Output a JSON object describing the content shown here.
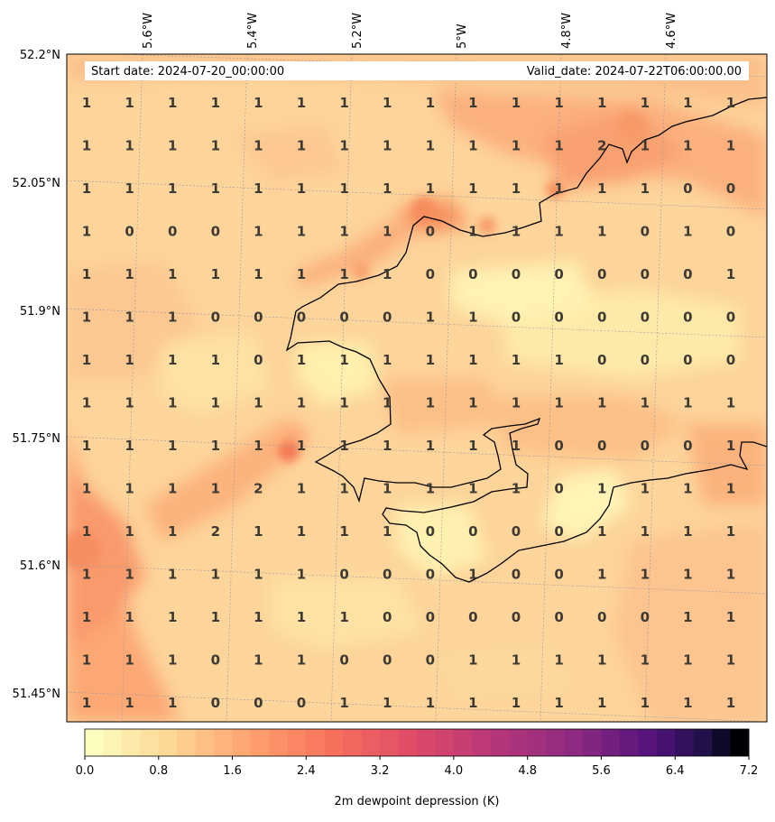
{
  "header": {
    "start_date": "Start date: 2024-07-20_00:00:00",
    "valid_date": "Valid_date: 2024-07-22T06:00:00.00"
  },
  "axes": {
    "lat_labels": [
      "52.2°N",
      "52.05°N",
      "51.9°N",
      "51.75°N",
      "51.6°N",
      "51.45°N"
    ],
    "lon_labels": [
      "5.6°W",
      "5.4°W",
      "5.2°W",
      "5°W",
      "4.8°W",
      "4.6°W"
    ]
  },
  "colorbar": {
    "label": "2m dewpoint depression (K)",
    "min": 0.0,
    "max": 7.2,
    "ticks": [
      "0.0",
      "0.8",
      "1.6",
      "2.4",
      "3.2",
      "4.0",
      "4.8",
      "5.6",
      "6.4",
      "7.2"
    ],
    "colormap": "magma-reversed"
  },
  "grid_values": [
    [
      1,
      1,
      1,
      1,
      1,
      1,
      1,
      1,
      1,
      1,
      1,
      1,
      1,
      1,
      1,
      1
    ],
    [
      1,
      1,
      1,
      1,
      1,
      1,
      1,
      1,
      1,
      1,
      1,
      1,
      2,
      1,
      1,
      1
    ],
    [
      1,
      1,
      1,
      1,
      1,
      1,
      1,
      1,
      1,
      1,
      1,
      1,
      1,
      1,
      0,
      0
    ],
    [
      1,
      0,
      0,
      0,
      1,
      1,
      1,
      1,
      0,
      1,
      1,
      1,
      1,
      0,
      1,
      0
    ],
    [
      1,
      1,
      1,
      1,
      1,
      1,
      1,
      1,
      0,
      0,
      0,
      0,
      0,
      0,
      0,
      1
    ],
    [
      1,
      1,
      1,
      0,
      0,
      0,
      0,
      0,
      1,
      1,
      0,
      0,
      0,
      0,
      0,
      0
    ],
    [
      1,
      1,
      1,
      1,
      0,
      1,
      1,
      1,
      1,
      1,
      1,
      1,
      0,
      0,
      0,
      0
    ],
    [
      1,
      1,
      1,
      1,
      1,
      1,
      1,
      1,
      1,
      1,
      1,
      1,
      1,
      1,
      1,
      1
    ],
    [
      1,
      1,
      1,
      1,
      1,
      1,
      1,
      1,
      1,
      1,
      1,
      0,
      0,
      0,
      0,
      1
    ],
    [
      1,
      1,
      1,
      1,
      2,
      1,
      1,
      1,
      1,
      1,
      1,
      0,
      1,
      1,
      1,
      1
    ],
    [
      1,
      1,
      1,
      2,
      1,
      1,
      1,
      1,
      0,
      0,
      0,
      0,
      1,
      1,
      1,
      1
    ],
    [
      1,
      1,
      1,
      1,
      1,
      1,
      0,
      0,
      0,
      1,
      0,
      0,
      1,
      1,
      1,
      1
    ],
    [
      1,
      1,
      1,
      1,
      1,
      1,
      1,
      0,
      0,
      0,
      0,
      0,
      0,
      0,
      1,
      1
    ],
    [
      1,
      1,
      1,
      0,
      1,
      1,
      0,
      0,
      0,
      1,
      1,
      1,
      1,
      1,
      1,
      1
    ],
    [
      1,
      1,
      1,
      0,
      0,
      0,
      1,
      1,
      1,
      1,
      1,
      1,
      1,
      1,
      1,
      1
    ]
  ],
  "colors": {
    "base_fill": "#fdd49a",
    "coastline": "#000000"
  }
}
